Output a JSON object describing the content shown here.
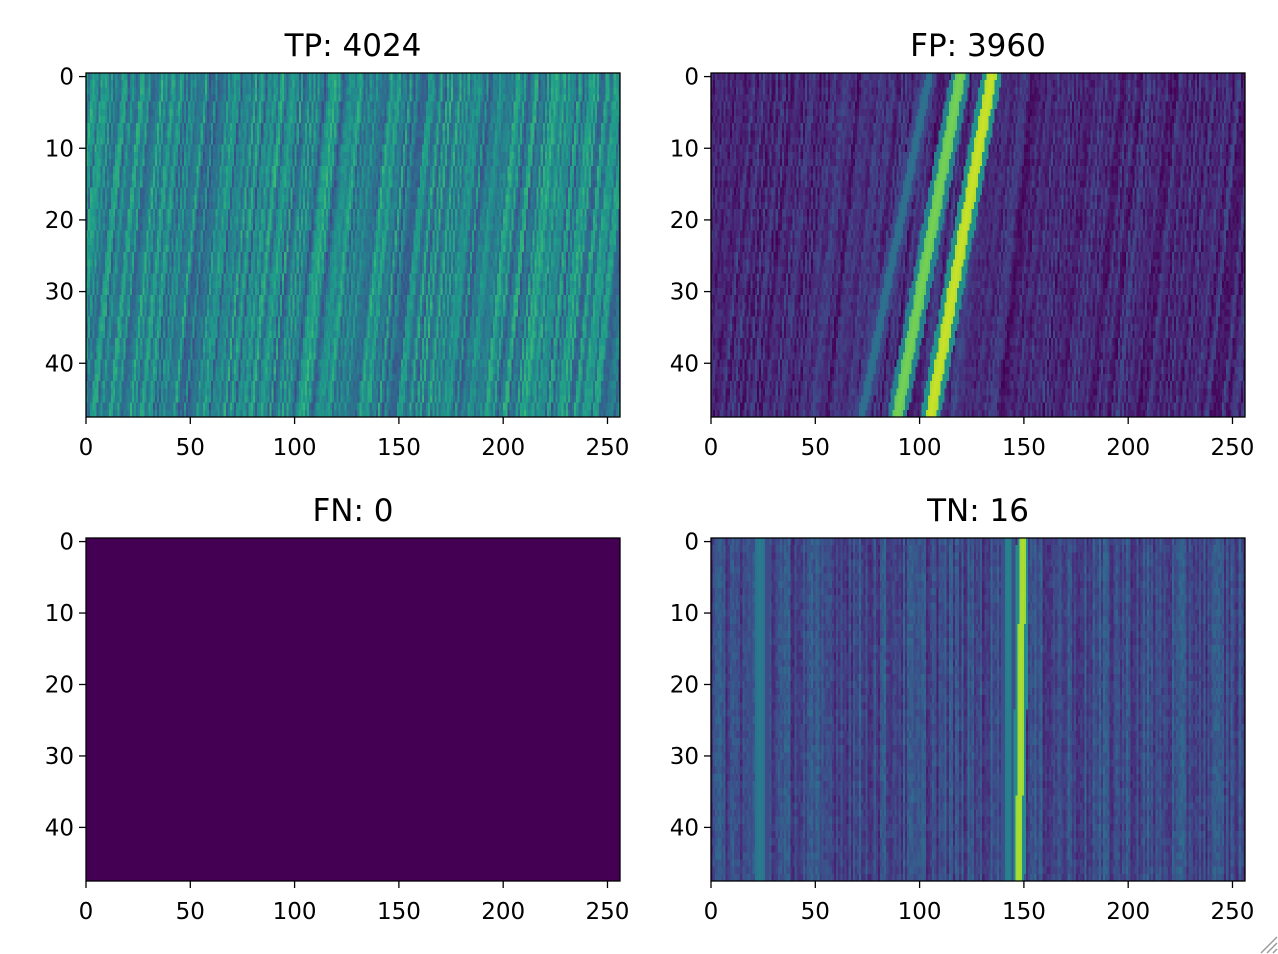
{
  "colors": {
    "viridis_low": "#440154",
    "viridis_mid": "#21918c",
    "viridis_high": "#fde725"
  },
  "chart_data": [
    {
      "type": "heatmap",
      "title": "TP: 4024",
      "x_ticks": [
        "0",
        "50",
        "100",
        "150",
        "200",
        "250"
      ],
      "y_ticks": [
        "0",
        "10",
        "20",
        "30",
        "40"
      ],
      "xlim": [
        0,
        256
      ],
      "ylim": [
        48,
        0
      ],
      "colormap": "viridis",
      "pattern": "diagonal_streaks",
      "base_level": 0.45,
      "stripes": []
    },
    {
      "type": "heatmap",
      "title": "FP: 3960",
      "x_ticks": [
        "0",
        "50",
        "100",
        "150",
        "200",
        "250"
      ],
      "y_ticks": [
        "0",
        "10",
        "20",
        "30",
        "40"
      ],
      "xlim": [
        0,
        256
      ],
      "ylim": [
        48,
        0
      ],
      "colormap": "viridis",
      "pattern": "diagonal_streaks",
      "base_level": 0.12,
      "stripes": [
        {
          "x_top": 104,
          "x_bottom": 72,
          "level": 0.38,
          "width": 4
        },
        {
          "x_top": 119,
          "x_bottom": 89,
          "level": 0.8,
          "width": 5
        },
        {
          "x_top": 134,
          "x_bottom": 105,
          "level": 0.93,
          "width": 5
        }
      ]
    },
    {
      "type": "heatmap",
      "title": "FN: 0",
      "x_ticks": [
        "0",
        "50",
        "100",
        "150",
        "200",
        "250"
      ],
      "y_ticks": [
        "0",
        "10",
        "20",
        "30",
        "40"
      ],
      "xlim": [
        0,
        256
      ],
      "ylim": [
        48,
        0
      ],
      "colormap": "viridis",
      "pattern": "uniform",
      "base_level": 0.0,
      "stripes": []
    },
    {
      "type": "heatmap",
      "title": "TN: 16",
      "x_ticks": [
        "0",
        "50",
        "100",
        "150",
        "200",
        "250"
      ],
      "y_ticks": [
        "0",
        "10",
        "20",
        "30",
        "40"
      ],
      "xlim": [
        0,
        256
      ],
      "ylim": [
        48,
        0
      ],
      "colormap": "viridis",
      "pattern": "vertical_streaks",
      "base_level": 0.22,
      "stripes": [
        {
          "x_top": 23,
          "x_bottom": 23,
          "level": 0.42,
          "width": 6
        },
        {
          "x_top": 142,
          "x_bottom": 142,
          "level": 0.45,
          "width": 4
        },
        {
          "x_top": 149,
          "x_bottom": 147,
          "level": 0.88,
          "width": 3
        }
      ]
    }
  ]
}
